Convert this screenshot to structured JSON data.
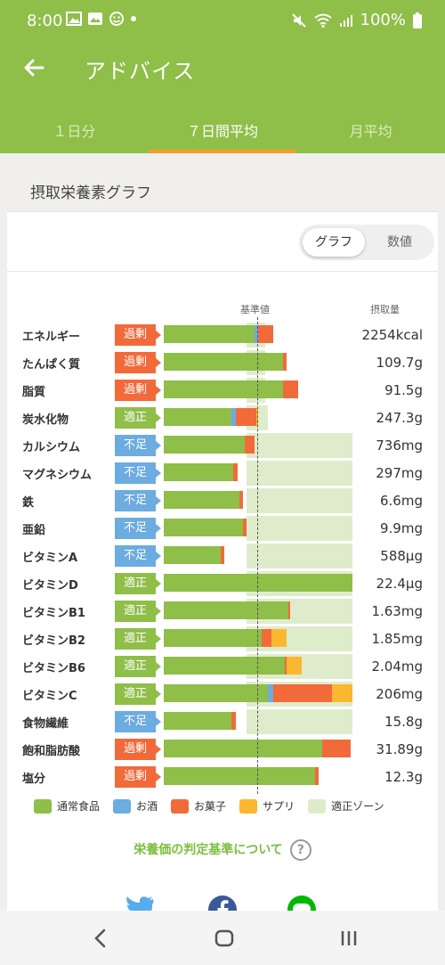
{
  "status": {
    "time": "8:00",
    "battery": "100%"
  },
  "appbar": {
    "title": "アドバイス"
  },
  "tabs": [
    {
      "label": "１日分"
    },
    {
      "label": "７日間平均"
    },
    {
      "label": "月平均"
    }
  ],
  "card": {
    "title": "摂取栄養素グラフ",
    "toggle": {
      "graph": "グラフ",
      "values": "数値"
    },
    "hdr_base": "基準値",
    "hdr_intake": "摂取量"
  },
  "colors": {
    "food": "#8fbe49",
    "alcohol": "#6cace0",
    "snack": "#f26a3a",
    "supplement": "#fbb72f",
    "zone": "#dfeccc"
  },
  "nutrients": [
    {
      "name": "エネルギー",
      "status": "過剰",
      "kind": "over",
      "value": "2254kcal",
      "food": 0.48,
      "alcohol": 0.02,
      "snack": 0.08,
      "supp": 0,
      "zone": [
        0.44,
        0.54
      ]
    },
    {
      "name": "たんぱく質",
      "status": "過剰",
      "kind": "over",
      "value": "109.7g",
      "food": 0.63,
      "alcohol": 0,
      "snack": 0.02,
      "supp": 0,
      "zone": [
        0.44,
        0.54
      ]
    },
    {
      "name": "脂質",
      "status": "過剰",
      "kind": "over",
      "value": "91.5g",
      "food": 0.63,
      "alcohol": 0,
      "snack": 0.08,
      "supp": 0,
      "zone": [
        0.44,
        0.54
      ]
    },
    {
      "name": "炭水化物",
      "status": "適正",
      "kind": "ok",
      "value": "247.3g",
      "food": 0.36,
      "alcohol": 0.02,
      "snack": 0.11,
      "supp": 0.01,
      "zone": [
        0.44,
        0.55
      ]
    },
    {
      "name": "カルシウム",
      "status": "不足",
      "kind": "under",
      "value": "736mg",
      "food": 0.43,
      "alcohol": 0,
      "snack": 0.05,
      "supp": 0,
      "zone": [
        0.44,
        1.0
      ]
    },
    {
      "name": "マグネシウム",
      "status": "不足",
      "kind": "under",
      "value": "297mg",
      "food": 0.37,
      "alcohol": 0,
      "snack": 0.02,
      "supp": 0,
      "zone": [
        0.44,
        1.0
      ]
    },
    {
      "name": "鉄",
      "status": "不足",
      "kind": "under",
      "value": "6.6mg",
      "food": 0.4,
      "alcohol": 0,
      "snack": 0.02,
      "supp": 0,
      "zone": [
        0.44,
        1.0
      ]
    },
    {
      "name": "亜鉛",
      "status": "不足",
      "kind": "under",
      "value": "9.9mg",
      "food": 0.42,
      "alcohol": 0,
      "snack": 0.02,
      "supp": 0,
      "zone": [
        0.44,
        1.0
      ]
    },
    {
      "name": "ビタミンA",
      "status": "不足",
      "kind": "under",
      "value": "588μg",
      "food": 0.3,
      "alcohol": 0,
      "snack": 0.02,
      "supp": 0,
      "zone": [
        0.44,
        1.0
      ]
    },
    {
      "name": "ビタミンD",
      "status": "適正",
      "kind": "ok",
      "value": "22.4μg",
      "food": 1.0,
      "alcohol": 0,
      "snack": 0,
      "supp": 0,
      "zone": [
        0.44,
        1.0
      ]
    },
    {
      "name": "ビタミンB1",
      "status": "適正",
      "kind": "ok",
      "value": "1.63mg",
      "food": 0.66,
      "alcohol": 0,
      "snack": 0.01,
      "supp": 0,
      "zone": [
        0.44,
        1.0
      ]
    },
    {
      "name": "ビタミンB2",
      "status": "適正",
      "kind": "ok",
      "value": "1.85mg",
      "food": 0.52,
      "alcohol": 0,
      "snack": 0.05,
      "supp": 0.08,
      "zone": [
        0.44,
        1.0
      ]
    },
    {
      "name": "ビタミンB6",
      "status": "適正",
      "kind": "ok",
      "value": "2.04mg",
      "food": 0.64,
      "alcohol": 0,
      "snack": 0.01,
      "supp": 0.08,
      "zone": [
        0.44,
        1.0
      ]
    },
    {
      "name": "ビタミンC",
      "status": "適正",
      "kind": "ok",
      "value": "206mg",
      "food": 0.55,
      "alcohol": 0.03,
      "snack": 0.31,
      "supp": 0.11,
      "zone": [
        0.44,
        1.0
      ]
    },
    {
      "name": "食物繊維",
      "status": "不足",
      "kind": "under",
      "value": "15.8g",
      "food": 0.36,
      "alcohol": 0,
      "snack": 0.02,
      "supp": 0,
      "zone": [
        0.44,
        1.0
      ]
    },
    {
      "name": "飽和脂肪酸",
      "status": "過剰",
      "kind": "over",
      "value": "31.89g",
      "food": 0.84,
      "alcohol": 0,
      "snack": 0.15,
      "supp": 0,
      "zone": [
        0.0,
        0.0
      ]
    },
    {
      "name": "塩分",
      "status": "過剰",
      "kind": "over",
      "value": "12.3g",
      "food": 0.8,
      "alcohol": 0,
      "snack": 0.02,
      "supp": 0,
      "zone": [
        0.0,
        0.0
      ]
    }
  ],
  "legend": [
    {
      "label": "通常食品",
      "color": "#8fbe49"
    },
    {
      "label": "お酒",
      "color": "#6cace0"
    },
    {
      "label": "お菓子",
      "color": "#f26a3a"
    },
    {
      "label": "サプリ",
      "color": "#fbb72f"
    },
    {
      "label": "適正ゾーン",
      "color": "#dfeccc"
    }
  ],
  "link": {
    "label": "栄養価の判定基準について"
  }
}
